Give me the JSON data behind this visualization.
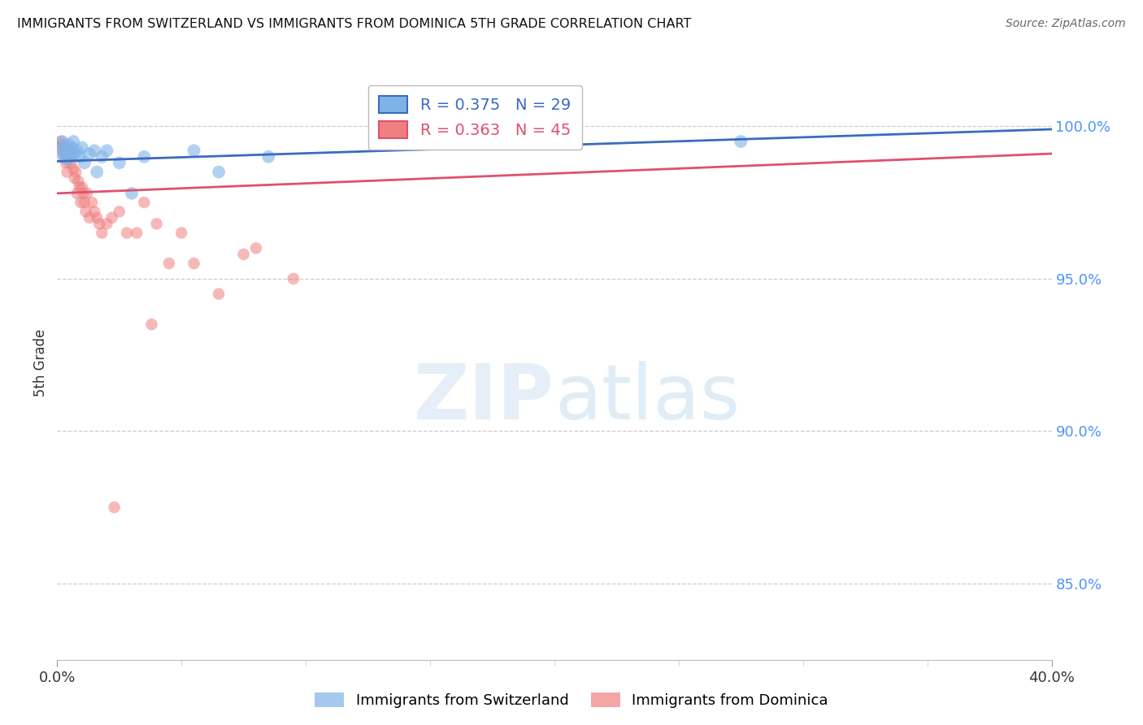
{
  "title": "IMMIGRANTS FROM SWITZERLAND VS IMMIGRANTS FROM DOMINICA 5TH GRADE CORRELATION CHART",
  "source": "Source: ZipAtlas.com",
  "ylabel": "5th Grade",
  "ytick_labels": [
    "85.0%",
    "90.0%",
    "95.0%",
    "100.0%"
  ],
  "ytick_values": [
    85.0,
    90.0,
    95.0,
    100.0
  ],
  "xlim": [
    0.0,
    40.0
  ],
  "ylim": [
    82.5,
    102.0
  ],
  "y_axis_color": "#4d94ff",
  "grid_color": "#cccccc",
  "background_color": "#ffffff",
  "blue_color": "#7fb3e8",
  "pink_color": "#f08080",
  "blue_line_color": "#3a6bbf",
  "pink_line_color": "#e05070",
  "legend_blue_r": "R = 0.375",
  "legend_blue_n": "N = 29",
  "legend_pink_r": "R = 0.363",
  "legend_pink_n": "N = 45",
  "legend_blue_label": "Immigrants from Switzerland",
  "legend_pink_label": "Immigrants from Dominica",
  "switzerland_x": [
    0.15,
    0.2,
    0.25,
    0.3,
    0.35,
    0.4,
    0.45,
    0.5,
    0.55,
    0.6,
    0.65,
    0.7,
    0.8,
    0.9,
    1.0,
    1.1,
    1.3,
    1.5,
    1.6,
    1.8,
    2.0,
    2.5,
    3.0,
    3.5,
    5.5,
    6.5,
    8.5,
    19.5,
    27.5
  ],
  "switzerland_y": [
    99.2,
    99.5,
    99.0,
    99.3,
    99.1,
    98.9,
    99.4,
    99.2,
    99.0,
    99.3,
    99.5,
    99.1,
    99.2,
    99.0,
    99.3,
    98.8,
    99.1,
    99.2,
    98.5,
    99.0,
    99.2,
    98.8,
    97.8,
    99.0,
    99.2,
    98.5,
    99.0,
    100.0,
    99.5
  ],
  "dominica_x": [
    0.1,
    0.15,
    0.2,
    0.25,
    0.3,
    0.35,
    0.4,
    0.45,
    0.5,
    0.55,
    0.6,
    0.65,
    0.7,
    0.75,
    0.8,
    0.85,
    0.9,
    0.95,
    1.0,
    1.05,
    1.1,
    1.15,
    1.2,
    1.3,
    1.4,
    1.5,
    1.6,
    1.7,
    1.8,
    2.0,
    2.2,
    2.5,
    2.8,
    3.2,
    3.5,
    4.0,
    4.5,
    5.0,
    5.5,
    6.5,
    7.5,
    8.0,
    9.5,
    2.3,
    3.8
  ],
  "dominica_y": [
    99.3,
    99.5,
    99.4,
    99.2,
    99.0,
    98.8,
    98.5,
    99.0,
    99.2,
    98.8,
    99.0,
    98.6,
    98.3,
    98.5,
    97.8,
    98.2,
    98.0,
    97.5,
    98.0,
    97.8,
    97.5,
    97.2,
    97.8,
    97.0,
    97.5,
    97.2,
    97.0,
    96.8,
    96.5,
    96.8,
    97.0,
    97.2,
    96.5,
    96.5,
    97.5,
    96.8,
    95.5,
    96.5,
    95.5,
    94.5,
    95.8,
    96.0,
    95.0,
    87.5,
    93.5
  ]
}
